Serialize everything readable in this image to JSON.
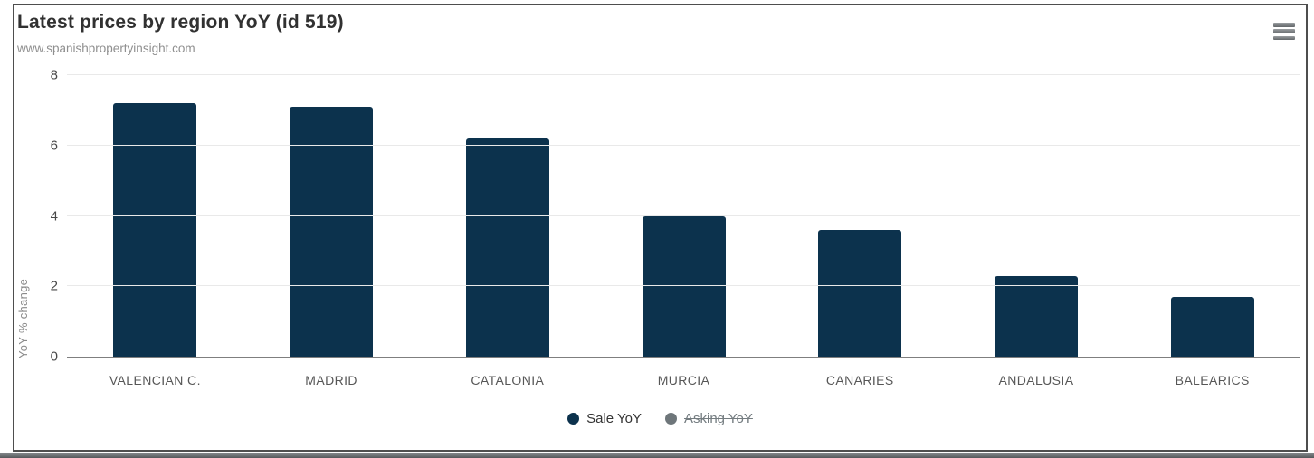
{
  "header": {
    "title": "Latest prices by region YoY (id 519)",
    "subtitle": "www.spanishpropertyinsight.com"
  },
  "chart_data": {
    "type": "bar",
    "title": "Latest prices by region YoY (id 519)",
    "subtitle": "www.spanishpropertyinsight.com",
    "categories": [
      "VALENCIAN C.",
      "MADRID",
      "CATALONIA",
      "MURCIA",
      "CANARIES",
      "ANDALUSIA",
      "BALEARICS"
    ],
    "series": [
      {
        "name": "Sale YoY",
        "color": "#0c324d",
        "visible": true,
        "values": [
          7.2,
          7.1,
          6.2,
          4.0,
          3.6,
          2.3,
          1.7
        ]
      },
      {
        "name": "Asking YoY",
        "color": "#6e767a",
        "visible": false,
        "values": []
      }
    ],
    "xlabel": "",
    "ylabel": "YoY % change",
    "ylim": [
      0,
      8
    ],
    "yticks": [
      0,
      2,
      4,
      6,
      8
    ],
    "grid": true,
    "legend_position": "bottom"
  },
  "colors": {
    "bar": "#0c324d",
    "disabled_series": "#6e767a",
    "title_text": "#313131",
    "subtitle_text": "#8f8f8f",
    "gridline": "#e9e9e9",
    "axis_line": "#7f7f7f",
    "card_border": "#4e4e4e"
  }
}
